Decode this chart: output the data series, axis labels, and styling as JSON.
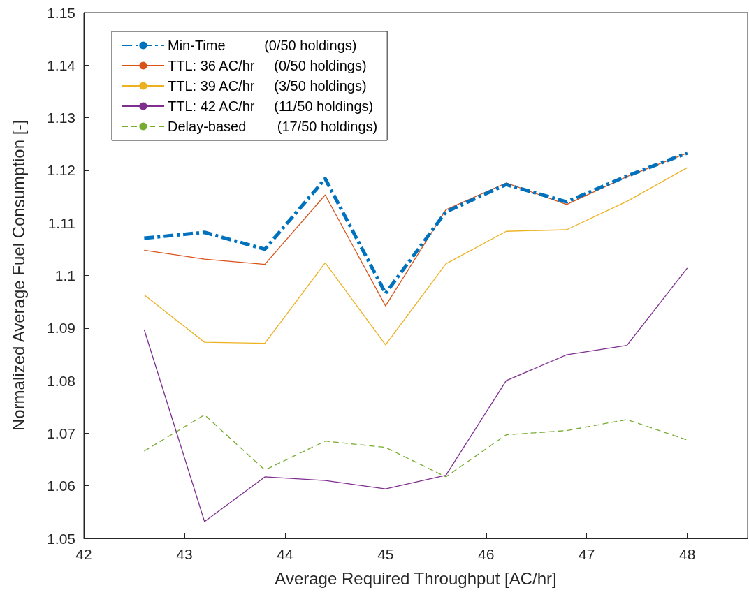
{
  "chart_data": {
    "type": "line",
    "xlabel": "Average Required Throughput [AC/hr]",
    "ylabel": "Normalized Average Fuel Consumption [-]",
    "x": [
      42.6,
      43.2,
      43.8,
      44.4,
      45,
      45.6,
      46.2,
      46.8,
      47.4,
      48
    ],
    "xlim": [
      42,
      48.6
    ],
    "xticks": [
      42,
      43,
      44,
      45,
      46,
      47,
      48
    ],
    "ylim": [
      1.05,
      1.15
    ],
    "yticks": [
      1.05,
      1.06,
      1.07,
      1.08,
      1.09,
      {
        "value": 1.1,
        "label": "1.1"
      },
      1.11,
      1.12,
      1.13,
      1.14,
      1.15
    ],
    "grid": false,
    "legend": "top left",
    "marker": "none",
    "series": [
      {
        "name": "Min-Time          (0/50 holdings)",
        "color": "#0072bd",
        "line_style": "dashdot",
        "values": [
          1.1071,
          1.1082,
          1.105,
          1.1184,
          1.0966,
          1.1121,
          1.1173,
          1.114,
          1.1189,
          1.1233
        ]
      },
      {
        "name": "TTL: 36 AC/hr     (0/50 holdings)",
        "color": "#d95319",
        "line_style": "solid",
        "values": [
          1.1048,
          1.1031,
          1.1021,
          1.1153,
          1.0942,
          1.1125,
          1.1176,
          1.1135,
          1.1188,
          1.1233
        ]
      },
      {
        "name": "TTL: 39 AC/hr     (3/50 holdings)",
        "color": "#edb120",
        "line_style": "solid",
        "values": [
          1.0963,
          1.0873,
          1.0871,
          1.1024,
          1.0868,
          1.1022,
          1.1084,
          1.1087,
          1.1141,
          1.1205
        ]
      },
      {
        "name": "TTL: 42 AC/hr     (11/50 holdings)",
        "color": "#7e2f8e",
        "line_style": "solid",
        "values": [
          1.0897,
          1.0532,
          1.0617,
          1.061,
          1.0594,
          1.062,
          1.08,
          1.0849,
          1.0867,
          1.1014
        ]
      },
      {
        "name": "Delay-based        (17/50 holdings)",
        "color": "#77ac30",
        "line_style": "dashed",
        "values": [
          1.0666,
          1.0735,
          1.063,
          1.0685,
          1.0673,
          1.0617,
          1.0697,
          1.0705,
          1.0726,
          1.0687
        ]
      }
    ]
  }
}
